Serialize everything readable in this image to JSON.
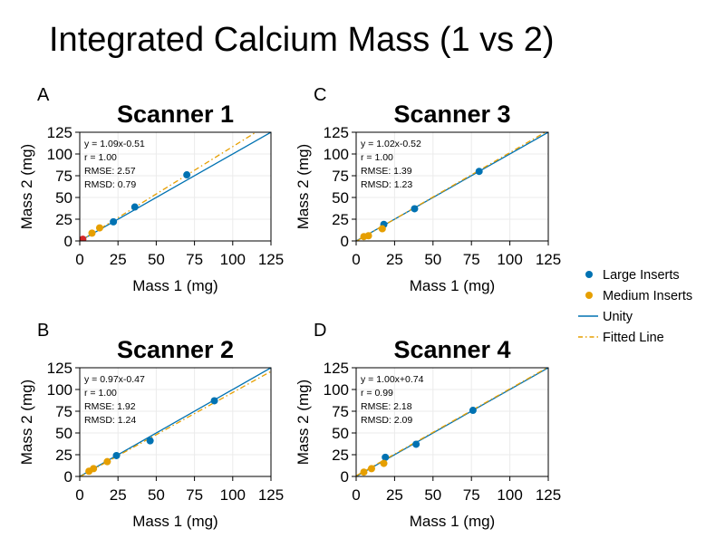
{
  "figure": {
    "title": "Integrated Calcium Mass (1 vs 2)",
    "legend": {
      "position": "right",
      "entries": [
        {
          "label": "Large Inserts",
          "kind": "point",
          "color": "#0072b2"
        },
        {
          "label": "Medium Inserts",
          "kind": "point",
          "color": "#e69f00"
        },
        {
          "label": "Unity",
          "kind": "line",
          "color": "#0072b2"
        },
        {
          "label": "Fitted Line",
          "kind": "dashdot",
          "color": "#e69f00"
        }
      ]
    },
    "colors": {
      "large": "#0072b2",
      "medium": "#e69f00",
      "small": "#d62728",
      "unity": "#0072b2",
      "fit": "#e69f00",
      "grid": "#ebebeb",
      "axis": "#000000"
    }
  },
  "chart_data": [
    {
      "type": "scatter",
      "panel": "A",
      "title": "Scanner 1",
      "xlabel": "Mass 1 (mg)",
      "ylabel": "Mass 2 (mg)",
      "xlim": [
        0,
        125
      ],
      "ylim": [
        0,
        125
      ],
      "xticks": [
        "0",
        "25",
        "50",
        "75",
        "100",
        "125"
      ],
      "yticks": [
        "0",
        "25",
        "50",
        "75",
        "100",
        "125"
      ],
      "grid": true,
      "stats": [
        "y = 1.09x-0.51",
        "r = 1.00",
        "RMSE: 2.57",
        "RMSD: 0.79"
      ],
      "fit": {
        "slope": 1.09,
        "intercept": -0.51
      },
      "series": [
        {
          "name": "Large Inserts",
          "x": [
            22,
            36,
            70
          ],
          "y": [
            22,
            39,
            76
          ]
        },
        {
          "name": "Medium Inserts",
          "x": [
            8,
            13
          ],
          "y": [
            9,
            15
          ]
        },
        {
          "x": [
            2
          ],
          "y": [
            2
          ]
        }
      ]
    },
    {
      "type": "scatter",
      "panel": "B",
      "title": "Scanner 2",
      "xlabel": "Mass 1 (mg)",
      "ylabel": "Mass 2 (mg)",
      "xlim": [
        0,
        125
      ],
      "ylim": [
        0,
        125
      ],
      "xticks": [
        "0",
        "25",
        "50",
        "75",
        "100",
        "125"
      ],
      "yticks": [
        "0",
        "25",
        "50",
        "75",
        "100",
        "125"
      ],
      "grid": true,
      "stats": [
        "y = 0.97x-0.47",
        "r = 1.00",
        "RMSE: 1.92",
        "RMSD: 1.24"
      ],
      "fit": {
        "slope": 0.97,
        "intercept": -0.47
      },
      "series": [
        {
          "name": "Large Inserts",
          "x": [
            24,
            46,
            88
          ],
          "y": [
            24,
            41,
            87
          ]
        },
        {
          "name": "Medium Inserts",
          "x": [
            6,
            9,
            18
          ],
          "y": [
            6,
            9,
            17
          ]
        }
      ]
    },
    {
      "type": "scatter",
      "panel": "C",
      "title": "Scanner 3",
      "xlabel": "Mass 1 (mg)",
      "ylabel": "Mass 2 (mg)",
      "xlim": [
        0,
        125
      ],
      "ylim": [
        0,
        125
      ],
      "xticks": [
        "0",
        "25",
        "50",
        "75",
        "100",
        "125"
      ],
      "yticks": [
        "0",
        "25",
        "50",
        "75",
        "100",
        "125"
      ],
      "grid": true,
      "stats": [
        "y = 1.02x-0.52",
        "r = 1.00",
        "RMSE: 1.39",
        "RMSD: 1.23"
      ],
      "fit": {
        "slope": 1.02,
        "intercept": -0.52
      },
      "series": [
        {
          "name": "Large Inserts",
          "x": [
            18,
            38,
            80
          ],
          "y": [
            19,
            37,
            80
          ]
        },
        {
          "name": "Medium Inserts",
          "x": [
            5,
            8,
            17
          ],
          "y": [
            5,
            6,
            14
          ]
        }
      ]
    },
    {
      "type": "scatter",
      "panel": "D",
      "title": "Scanner 4",
      "xlabel": "Mass 1 (mg)",
      "ylabel": "Mass 2 (mg)",
      "xlim": [
        0,
        125
      ],
      "ylim": [
        0,
        125
      ],
      "xticks": [
        "0",
        "25",
        "50",
        "75",
        "100",
        "125"
      ],
      "yticks": [
        "0",
        "25",
        "50",
        "75",
        "100",
        "125"
      ],
      "grid": true,
      "stats": [
        "y = 1.00x+0.74",
        "r = 0.99",
        "RMSE: 2.18",
        "RMSD: 2.09"
      ],
      "fit": {
        "slope": 1.0,
        "intercept": 0.74
      },
      "series": [
        {
          "name": "Large Inserts",
          "x": [
            19,
            39,
            76
          ],
          "y": [
            22,
            37,
            76
          ]
        },
        {
          "name": "Medium Inserts",
          "x": [
            5,
            10,
            18
          ],
          "y": [
            5,
            9,
            15
          ]
        }
      ]
    }
  ]
}
